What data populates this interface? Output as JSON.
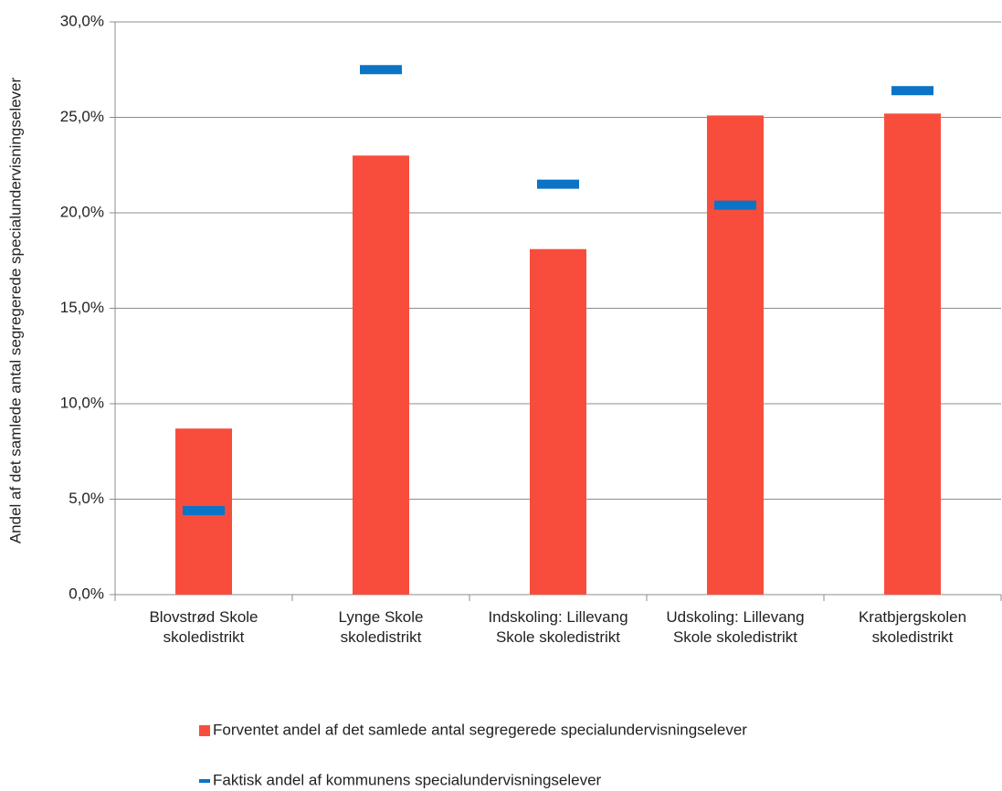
{
  "chart_data": {
    "type": "bar",
    "ylabel": "Andel af det samlede antal segregerede specialundervisningselever",
    "categories": [
      "Blovstrød Skole\nskoledistrikt",
      "Lynge Skole\nskoledistrikt",
      "Indskoling: Lillevang\nSkole skoledistrikt",
      "Udskoling: Lillevang\nSkole skoledistrikt",
      "Kratbjergskolen\nskoledistrikt"
    ],
    "series": [
      {
        "name": "Forventet andel af det samlede antal segregerede specialundervisningselever",
        "color": "#f84d3d",
        "mark": "bar",
        "values": [
          8.7,
          23.0,
          18.1,
          25.1,
          25.2
        ]
      },
      {
        "name": "Faktisk andel af kommunens specialundervisningselever",
        "color": "#0b74c6",
        "mark": "dash",
        "values": [
          4.4,
          27.5,
          21.5,
          20.4,
          26.4
        ]
      }
    ],
    "ylim": [
      0,
      30
    ],
    "yticks": [
      {
        "value": 0,
        "label": "0,0%"
      },
      {
        "value": 5,
        "label": "5,0%"
      },
      {
        "value": 10,
        "label": "10,0%"
      },
      {
        "value": 15,
        "label": "15,0%"
      },
      {
        "value": 20,
        "label": "20,0%"
      },
      {
        "value": 25,
        "label": "25,0%"
      },
      {
        "value": 30,
        "label": "30,0%"
      }
    ],
    "grid": true
  }
}
